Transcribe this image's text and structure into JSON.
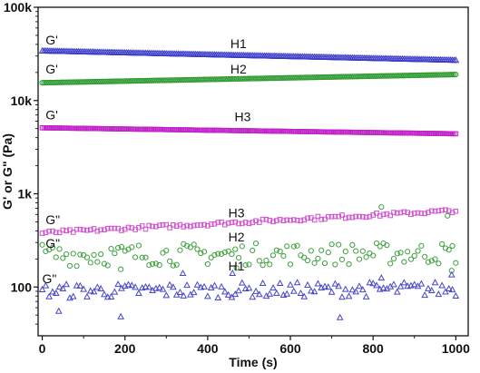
{
  "chart_data": {
    "type": "scatter",
    "xlabel": "Time (s)",
    "ylabel": "G' or G\" (Pa)",
    "xlim": [
      -10,
      1030
    ],
    "ylim": [
      30,
      100000
    ],
    "y_scale": "log",
    "x_ticks": [
      0,
      200,
      400,
      600,
      800,
      1000
    ],
    "x_tick_labels": [
      "0",
      "200",
      "400",
      "600",
      "800",
      "1000"
    ],
    "y_ticks": [
      100,
      1000,
      10000,
      100000
    ],
    "y_tick_labels": [
      "100",
      "1k",
      "10k",
      "100k"
    ],
    "grid": false,
    "legend": "none",
    "series": [
      {
        "key": "h1_gp",
        "marker": "triangle",
        "color": "#3a3ac8",
        "x_start": 0,
        "x_end": 1000,
        "y_start": 34000,
        "y_end": 27000,
        "noise": 0,
        "outliers": []
      },
      {
        "key": "h2_gp",
        "marker": "circle",
        "color": "#2e9a2e",
        "x_start": 0,
        "x_end": 1000,
        "y_start": 15500,
        "y_end": 19000,
        "noise": 0,
        "outliers": []
      },
      {
        "key": "h3_gp",
        "marker": "square",
        "color": "#c020c8",
        "x_start": 0,
        "x_end": 1000,
        "y_start": 5100,
        "y_end": 4400,
        "noise": 0,
        "outliers": []
      },
      {
        "key": "h3_gpp",
        "marker": "square",
        "color": "#d050d0",
        "x_start": 0,
        "x_end": 1000,
        "y_start": 380,
        "y_end": 660,
        "noise": 0.02,
        "outliers": []
      },
      {
        "key": "h2_gpp",
        "marker": "circle",
        "color": "#3fa03f",
        "x_start": 0,
        "x_end": 1000,
        "y_start": 220,
        "y_end": 230,
        "noise": 0.12,
        "outliers": [
          [
            190,
            155
          ],
          [
            470,
            160
          ],
          [
            820,
            720
          ],
          [
            980,
            580
          ],
          [
            990,
            150
          ]
        ]
      },
      {
        "key": "h1_gpp",
        "marker": "triangle",
        "color": "#4545c8",
        "x_start": 0,
        "x_end": 1000,
        "y_start": 90,
        "y_end": 95,
        "noise": 0.08,
        "outliers": [
          [
            40,
            55
          ],
          [
            190,
            48
          ],
          [
            720,
            47
          ],
          [
            340,
            140
          ],
          [
            460,
            140
          ],
          [
            820,
            125
          ],
          [
            990,
            135
          ]
        ]
      }
    ],
    "annotations": [
      {
        "key": "a_g1",
        "text": "G'",
        "x": 8,
        "y": 40000
      },
      {
        "key": "a_g2",
        "text": "G'",
        "x": 8,
        "y": 19500
      },
      {
        "key": "a_g3",
        "text": "G'",
        "x": 8,
        "y": 6300
      },
      {
        "key": "a_g4",
        "text": "G\"",
        "x": 8,
        "y": 470
      },
      {
        "key": "a_g5",
        "text": "G\"",
        "x": 8,
        "y": 265
      },
      {
        "key": "a_g6",
        "text": "G\"",
        "x": 0,
        "y": 110
      },
      {
        "key": "a_h1a",
        "text": "H1",
        "x": 455,
        "y": 36500
      },
      {
        "key": "a_h2a",
        "text": "H2",
        "x": 455,
        "y": 19500
      },
      {
        "key": "a_h3a",
        "text": "H3",
        "x": 465,
        "y": 6000
      },
      {
        "key": "a_h3b",
        "text": "H3",
        "x": 450,
        "y": 560
      },
      {
        "key": "a_h2b",
        "text": "H2",
        "x": 450,
        "y": 310
      },
      {
        "key": "a_h1b",
        "text": "H1",
        "x": 450,
        "y": 150
      }
    ]
  }
}
